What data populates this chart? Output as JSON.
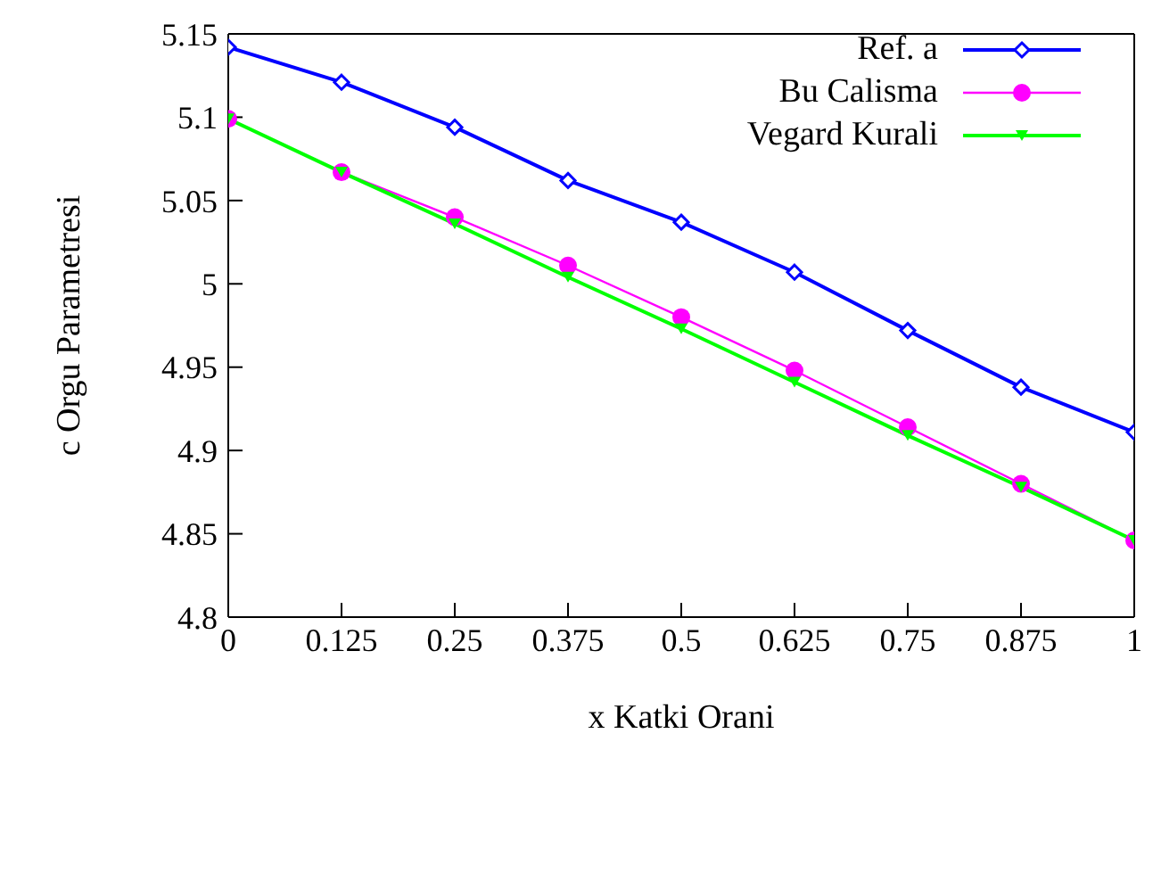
{
  "chart_data": {
    "type": "line",
    "xlabel": "x Katki Orani",
    "ylabel": "c Orgu Parametresi",
    "x": [
      0,
      0.125,
      0.25,
      0.375,
      0.5,
      0.625,
      0.75,
      0.875,
      1
    ],
    "xlim": [
      0,
      1
    ],
    "xticks": [
      0,
      0.125,
      0.25,
      0.375,
      0.5,
      0.625,
      0.75,
      0.875,
      1
    ],
    "ylim": [
      4.8,
      5.15
    ],
    "yticks": [
      4.8,
      4.85,
      4.9,
      4.95,
      5,
      5.05,
      5.1,
      5.15
    ],
    "grid": false,
    "legend": "top right",
    "series": [
      {
        "name": "Ref. a",
        "color": "#0000ff",
        "marker": "diamond",
        "values": [
          5.142,
          5.121,
          5.094,
          5.062,
          5.037,
          5.007,
          4.972,
          4.938,
          4.911
        ]
      },
      {
        "name": "Bu Calisma",
        "color": "#ff00ff",
        "marker": "circle",
        "values": [
          5.099,
          5.067,
          5.04,
          5.011,
          4.98,
          4.948,
          4.914,
          4.88,
          4.846
        ]
      },
      {
        "name": "Vegard Kurali",
        "color": "#00ff00",
        "marker": "triangle",
        "values": [
          5.099,
          5.067,
          5.036,
          5.004,
          4.973,
          4.941,
          4.909,
          4.878,
          4.846
        ]
      }
    ]
  }
}
